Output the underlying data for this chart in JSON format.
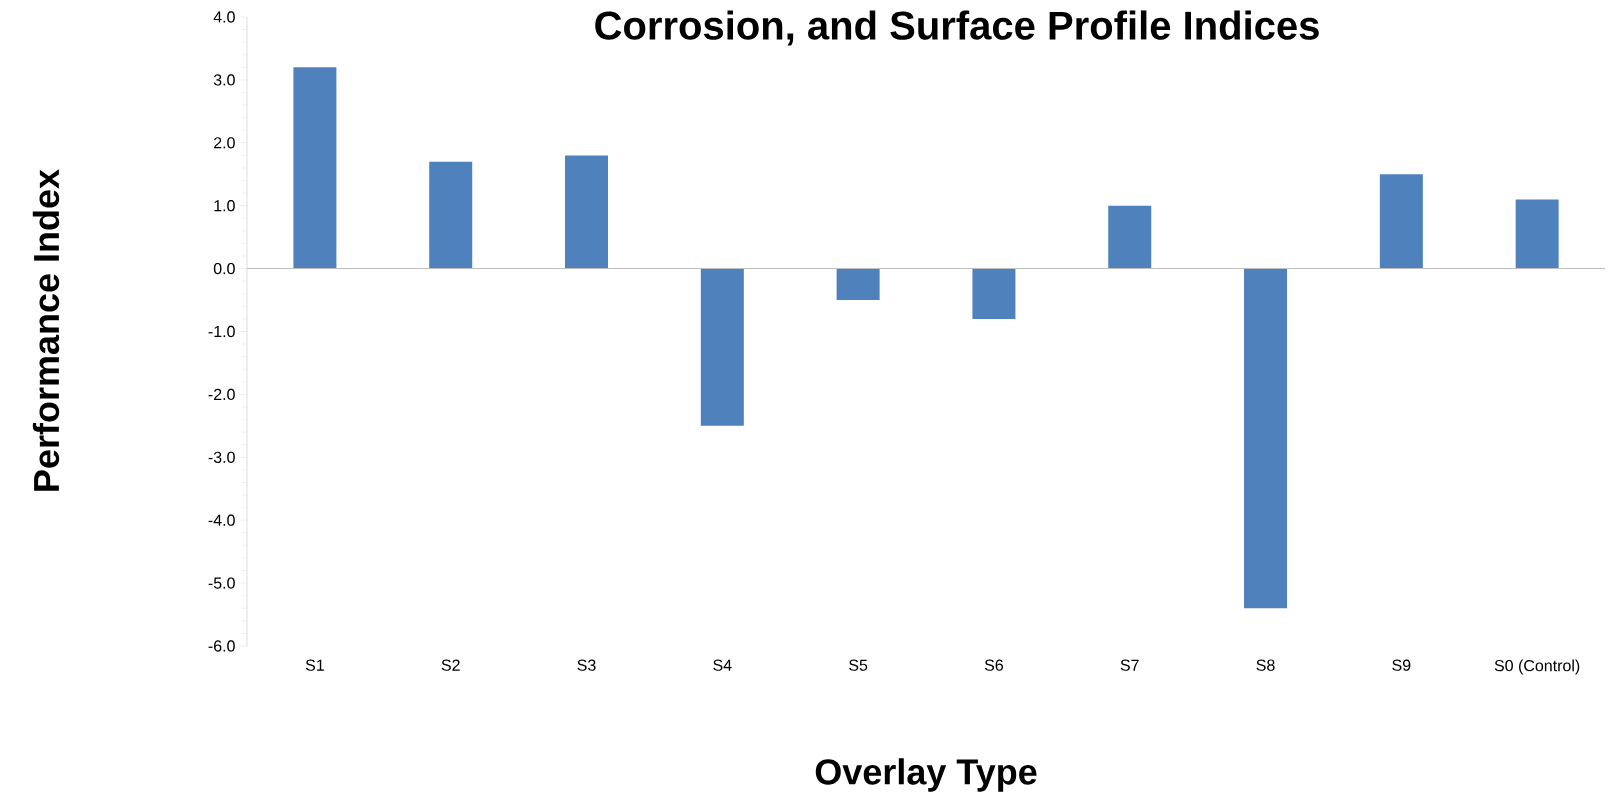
{
  "chart_data": {
    "type": "bar",
    "title": "Corrosion, and Surface Profile Indices",
    "xlabel": "Overlay Type",
    "ylabel": "Performance Index",
    "categories": [
      "S1",
      "S2",
      "S3",
      "S4",
      "S5",
      "S6",
      "S7",
      "S8",
      "S9",
      "S0 (Control)"
    ],
    "values": [
      3.2,
      1.7,
      1.8,
      -2.5,
      -0.5,
      -0.8,
      1.0,
      -5.4,
      1.5,
      1.1
    ],
    "color": "#4f81bd",
    "ylim": [
      -6,
      4
    ],
    "yticks": [
      {
        "value": -6,
        "label": "-6.0"
      },
      {
        "value": -5,
        "label": "-5.0"
      },
      {
        "value": -4,
        "label": "-4.0"
      },
      {
        "value": -3,
        "label": "-3.0"
      },
      {
        "value": -2,
        "label": "-2.0"
      },
      {
        "value": -1,
        "label": "-1.0"
      },
      {
        "value": 0,
        "label": "0.0"
      },
      {
        "value": 1,
        "label": "1.0"
      },
      {
        "value": 2,
        "label": "2.0"
      },
      {
        "value": 3,
        "label": "3.0"
      },
      {
        "value": 4,
        "label": "4.0"
      }
    ],
    "ref_lines": [
      {
        "axis": "y",
        "value": 0,
        "color": "#bfbfbf"
      }
    ]
  }
}
